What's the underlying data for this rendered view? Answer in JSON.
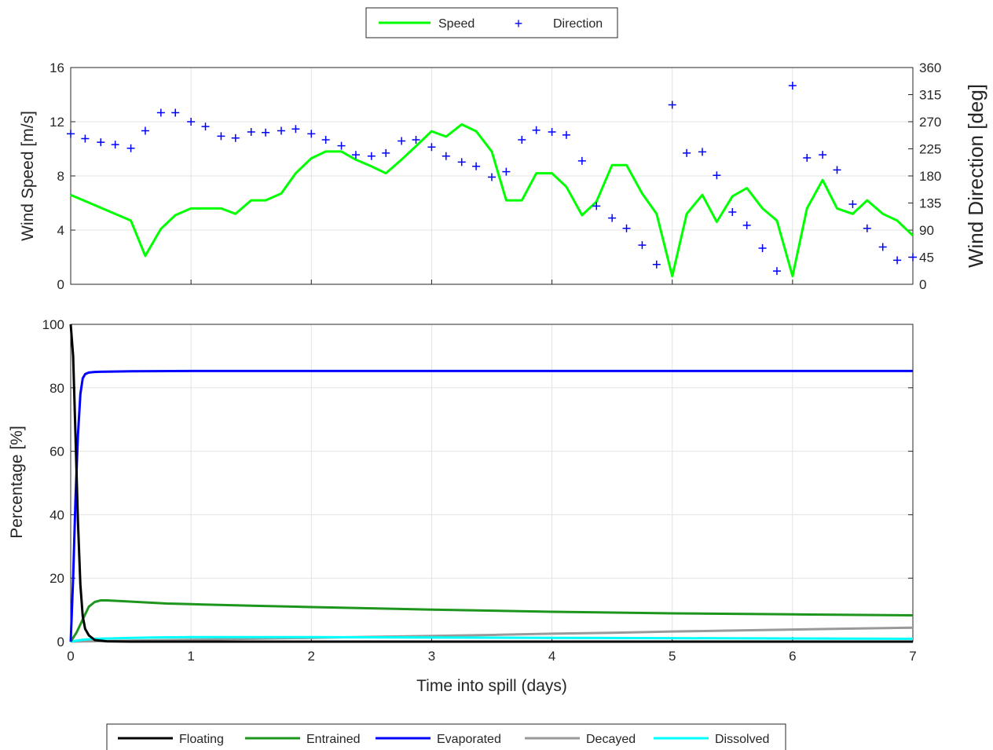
{
  "chart_data": [
    {
      "type": "line",
      "xlim": [
        0,
        7
      ],
      "ylim": [
        0,
        16
      ],
      "y2lim": [
        0,
        360
      ],
      "ylabel": "Wind Speed [m/s]",
      "y2label": "Wind Direction [deg]",
      "yticks": [
        0,
        4,
        8,
        12,
        16
      ],
      "y2ticks": [
        0,
        45,
        90,
        135,
        180,
        225,
        270,
        315,
        360
      ],
      "grid": true,
      "legend": {
        "position": "top-center",
        "entries": [
          "Speed",
          "Direction"
        ]
      },
      "colors": {
        "speed": "#00ff00",
        "direction": "#0000ff"
      },
      "speed": {
        "name": "Speed",
        "x": [
          0,
          0.5,
          0.62,
          0.75,
          0.87,
          1.0,
          1.25,
          1.37,
          1.5,
          1.62,
          1.75,
          1.87,
          2.0,
          2.12,
          2.25,
          2.37,
          2.5,
          2.62,
          2.75,
          2.87,
          3.0,
          3.12,
          3.25,
          3.37,
          3.5,
          3.62,
          3.75,
          3.87,
          4.0,
          4.12,
          4.25,
          4.37,
          4.5,
          4.62,
          4.75,
          4.87,
          5.0,
          5.12,
          5.25,
          5.37,
          5.5,
          5.62,
          5.75,
          5.87,
          6.0,
          6.12,
          6.25,
          6.37,
          6.5,
          6.62,
          6.75,
          6.87,
          7.0
        ],
        "y": [
          6.6,
          4.7,
          2.1,
          4.1,
          5.1,
          5.6,
          5.6,
          5.2,
          6.2,
          6.2,
          6.7,
          8.2,
          9.3,
          9.8,
          9.8,
          9.2,
          8.7,
          8.2,
          9.2,
          10.2,
          11.3,
          10.9,
          11.8,
          11.3,
          9.8,
          6.2,
          6.2,
          8.2,
          8.2,
          7.2,
          5.1,
          6.1,
          8.8,
          8.8,
          6.7,
          5.2,
          0.6,
          5.2,
          6.6,
          4.6,
          6.5,
          7.1,
          5.6,
          4.7,
          0.6,
          5.6,
          7.7,
          5.6,
          5.2,
          6.2,
          5.2,
          4.7,
          3.6
        ]
      },
      "direction": {
        "name": "Direction",
        "x": [
          0,
          0.12,
          0.25,
          0.37,
          0.5,
          0.62,
          0.75,
          0.87,
          1.0,
          1.12,
          1.25,
          1.37,
          1.5,
          1.62,
          1.75,
          1.87,
          2.0,
          2.12,
          2.25,
          2.37,
          2.5,
          2.62,
          2.75,
          2.87,
          3.0,
          3.12,
          3.25,
          3.37,
          3.5,
          3.62,
          3.75,
          3.87,
          4.0,
          4.12,
          4.25,
          4.37,
          4.5,
          4.62,
          4.75,
          4.87,
          5.0,
          5.12,
          5.25,
          5.37,
          5.5,
          5.62,
          5.75,
          5.87,
          6.0,
          6.12,
          6.25,
          6.37,
          6.5,
          6.62,
          6.75,
          6.87,
          7.0
        ],
        "y": [
          250,
          242,
          236,
          232,
          226,
          255,
          285,
          285,
          270,
          262,
          246,
          243,
          253,
          252,
          255,
          258,
          250,
          240,
          230,
          215,
          213,
          218,
          238,
          240,
          228,
          213,
          203,
          196,
          178,
          187,
          240,
          256,
          253,
          248,
          205,
          130,
          110,
          93,
          65,
          33,
          298,
          218,
          220,
          181,
          120,
          98,
          60,
          22,
          330,
          210,
          215,
          190,
          133,
          93,
          62,
          40,
          45
        ]
      }
    },
    {
      "type": "line",
      "xlim": [
        0,
        7
      ],
      "ylim": [
        0,
        100
      ],
      "xlabel": "Time into spill (days)",
      "ylabel": "Percentage  [%]",
      "xticks": [
        0,
        1,
        2,
        3,
        4,
        5,
        6,
        7
      ],
      "yticks": [
        0,
        20,
        40,
        60,
        80,
        100
      ],
      "grid": true,
      "legend": {
        "position": "bottom-center"
      },
      "series": [
        {
          "name": "Floating",
          "color": "#000000",
          "x": [
            0,
            0.02,
            0.04,
            0.06,
            0.08,
            0.1,
            0.12,
            0.15,
            0.2,
            0.3,
            0.5,
            1,
            2,
            3,
            4,
            5,
            6,
            7
          ],
          "y": [
            100,
            90,
            65,
            38,
            18,
            8,
            4,
            2,
            0.5,
            0.1,
            0,
            0,
            0,
            0,
            0,
            0,
            0,
            0
          ]
        },
        {
          "name": "Entrained",
          "color": "#1e961e",
          "x": [
            0,
            0.05,
            0.1,
            0.15,
            0.2,
            0.25,
            0.3,
            0.4,
            0.6,
            0.8,
            1,
            1.5,
            2,
            3,
            4,
            5,
            6,
            7
          ],
          "y": [
            0,
            3,
            7,
            11,
            12.5,
            13,
            13,
            12.8,
            12.4,
            12,
            11.8,
            11.3,
            10.9,
            10.1,
            9.4,
            8.9,
            8.6,
            8.3
          ]
        },
        {
          "name": "Evaporated",
          "color": "#0000ff",
          "x": [
            0,
            0.02,
            0.04,
            0.06,
            0.08,
            0.1,
            0.12,
            0.15,
            0.2,
            0.3,
            0.5,
            1,
            2,
            3,
            4,
            5,
            6,
            7
          ],
          "y": [
            0,
            20,
            45,
            65,
            78,
            83,
            84.3,
            84.8,
            85,
            85.1,
            85.2,
            85.3,
            85.3,
            85.3,
            85.3,
            85.3,
            85.3,
            85.3
          ]
        },
        {
          "name": "Decayed",
          "color": "#999999",
          "x": [
            0,
            0.5,
            1,
            1.5,
            2,
            2.5,
            3,
            3.5,
            4,
            4.5,
            5,
            5.5,
            6,
            6.5,
            7
          ],
          "y": [
            0,
            0.3,
            0.6,
            0.9,
            1.2,
            1.5,
            1.8,
            2.1,
            2.5,
            2.8,
            3.2,
            3.5,
            3.8,
            4.1,
            4.4
          ]
        },
        {
          "name": "Dissolved",
          "color": "#00ffff",
          "x": [
            0,
            0.1,
            0.2,
            0.4,
            0.7,
            1,
            2,
            3,
            4,
            5,
            6,
            7
          ],
          "y": [
            0,
            0.6,
            0.9,
            1.1,
            1.3,
            1.4,
            1.4,
            1.3,
            1.2,
            1.1,
            1.0,
            0.9
          ]
        }
      ]
    }
  ]
}
